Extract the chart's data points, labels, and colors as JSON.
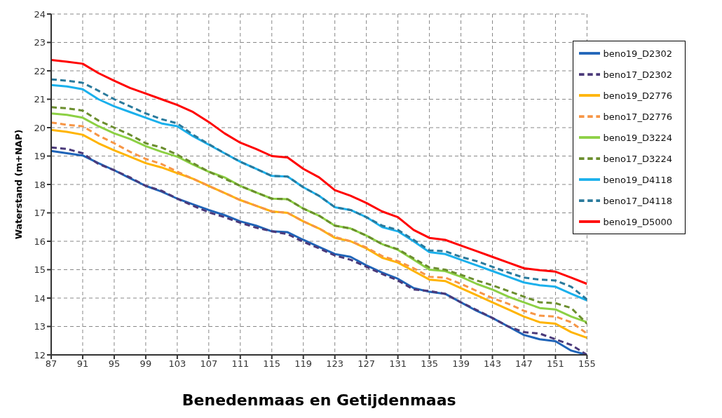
{
  "chart_data": {
    "type": "line",
    "xlabel": "Benedenmaas en Getijdenmaas",
    "ylabel": "Waterstand (m+NAP)",
    "x": [
      87,
      89,
      91,
      93,
      95,
      97,
      99,
      101,
      103,
      105,
      107,
      109,
      111,
      113,
      115,
      117,
      119,
      121,
      123,
      125,
      127,
      129,
      131,
      133,
      135,
      137,
      139,
      141,
      143,
      145,
      147,
      149,
      151,
      153,
      155
    ],
    "xlim": [
      87,
      155
    ],
    "xticks": [
      87,
      91,
      95,
      99,
      103,
      107,
      111,
      115,
      119,
      123,
      127,
      131,
      135,
      139,
      143,
      147,
      151,
      155
    ],
    "ylim": [
      12,
      24
    ],
    "yticks": [
      12,
      13,
      14,
      15,
      16,
      17,
      18,
      19,
      20,
      21,
      22,
      23,
      24
    ],
    "grid": true,
    "legend": "top right",
    "marker": "none",
    "series": [
      {
        "name": "beno19_D2302",
        "color": "#1f64b8",
        "line_style": "solid",
        "values": [
          19.18,
          19.1,
          19.02,
          18.75,
          18.5,
          18.22,
          17.95,
          17.75,
          17.5,
          17.3,
          17.1,
          16.92,
          16.7,
          16.55,
          16.35,
          16.32,
          16.05,
          15.8,
          15.55,
          15.45,
          15.15,
          14.9,
          14.68,
          14.35,
          14.22,
          14.15,
          13.85,
          13.55,
          13.3,
          13.0,
          12.7,
          12.55,
          12.48,
          12.15,
          12.0
        ]
      },
      {
        "name": "beno17_D2302",
        "color": "#4b3a7a",
        "line_style": "dashed",
        "values": [
          19.3,
          19.25,
          19.1,
          18.72,
          18.5,
          18.25,
          17.95,
          17.78,
          17.5,
          17.25,
          17.02,
          16.85,
          16.65,
          16.48,
          16.35,
          16.25,
          15.98,
          15.75,
          15.5,
          15.35,
          15.1,
          14.85,
          14.62,
          14.3,
          14.25,
          14.15,
          13.85,
          13.58,
          13.3,
          13.0,
          12.8,
          12.75,
          12.55,
          12.35,
          12.0
        ]
      },
      {
        "name": "beno19_D2776",
        "color": "#ffb400",
        "line_style": "solid",
        "values": [
          19.92,
          19.85,
          19.75,
          19.45,
          19.2,
          18.98,
          18.75,
          18.6,
          18.4,
          18.2,
          17.95,
          17.7,
          17.45,
          17.25,
          17.05,
          17.0,
          16.7,
          16.45,
          16.12,
          16.0,
          15.75,
          15.42,
          15.25,
          14.95,
          14.65,
          14.6,
          14.35,
          14.1,
          13.85,
          13.6,
          13.35,
          13.15,
          13.1,
          12.8,
          12.6
        ]
      },
      {
        "name": "beno17_D2776",
        "color": "#f79646",
        "line_style": "dashed",
        "values": [
          20.18,
          20.1,
          20.05,
          19.72,
          19.45,
          19.15,
          18.9,
          18.72,
          18.45,
          18.2,
          17.95,
          17.7,
          17.45,
          17.25,
          17.05,
          17.0,
          16.7,
          16.45,
          16.15,
          16.0,
          15.78,
          15.48,
          15.3,
          15.05,
          14.75,
          14.72,
          14.5,
          14.25,
          14.0,
          13.8,
          13.55,
          13.38,
          13.35,
          13.15,
          12.75
        ]
      },
      {
        "name": "beno19_D3224",
        "color": "#8cd044",
        "line_style": "solid",
        "values": [
          20.5,
          20.45,
          20.35,
          20.05,
          19.8,
          19.6,
          19.35,
          19.15,
          18.98,
          18.7,
          18.45,
          18.25,
          17.95,
          17.72,
          17.5,
          17.48,
          17.15,
          16.9,
          16.55,
          16.45,
          16.2,
          15.9,
          15.7,
          15.35,
          15.0,
          14.95,
          14.75,
          14.5,
          14.3,
          14.05,
          13.85,
          13.65,
          13.6,
          13.35,
          13.15
        ]
      },
      {
        "name": "beno17_D3224",
        "color": "#6b8e2e",
        "line_style": "dashed",
        "values": [
          20.72,
          20.68,
          20.6,
          20.25,
          20.0,
          19.75,
          19.45,
          19.3,
          19.05,
          18.75,
          18.45,
          18.2,
          17.95,
          17.72,
          17.5,
          17.48,
          17.15,
          16.9,
          16.55,
          16.45,
          16.2,
          15.9,
          15.72,
          15.4,
          15.08,
          15.0,
          14.82,
          14.62,
          14.45,
          14.25,
          14.05,
          13.85,
          13.82,
          13.65,
          13.1
        ]
      },
      {
        "name": "beno19_D4118",
        "color": "#1ab0ec",
        "line_style": "solid",
        "values": [
          21.5,
          21.45,
          21.35,
          21.0,
          20.75,
          20.55,
          20.35,
          20.15,
          20.05,
          19.7,
          19.4,
          19.1,
          18.8,
          18.55,
          18.3,
          18.28,
          17.9,
          17.6,
          17.2,
          17.1,
          16.85,
          16.5,
          16.35,
          16.0,
          15.62,
          15.55,
          15.35,
          15.15,
          14.95,
          14.75,
          14.55,
          14.45,
          14.4,
          14.15,
          13.92
        ]
      },
      {
        "name": "beno17_D4118",
        "color": "#2a7a9c",
        "line_style": "dashed",
        "values": [
          21.7,
          21.65,
          21.58,
          21.3,
          21.0,
          20.75,
          20.5,
          20.3,
          20.15,
          19.75,
          19.42,
          19.1,
          18.8,
          18.55,
          18.3,
          18.28,
          17.9,
          17.6,
          17.2,
          17.1,
          16.85,
          16.55,
          16.4,
          16.05,
          15.68,
          15.65,
          15.45,
          15.3,
          15.1,
          14.9,
          14.72,
          14.65,
          14.62,
          14.4,
          13.95
        ]
      },
      {
        "name": "beno19_D5000",
        "color": "#ff0000",
        "line_style": "solid",
        "values": [
          22.38,
          22.32,
          22.25,
          21.92,
          21.65,
          21.4,
          21.2,
          21.0,
          20.8,
          20.55,
          20.2,
          19.8,
          19.47,
          19.25,
          19.0,
          18.95,
          18.55,
          18.25,
          17.8,
          17.6,
          17.35,
          17.05,
          16.85,
          16.4,
          16.12,
          16.05,
          15.85,
          15.65,
          15.45,
          15.25,
          15.05,
          14.98,
          14.93,
          14.72,
          14.5
        ]
      }
    ]
  }
}
